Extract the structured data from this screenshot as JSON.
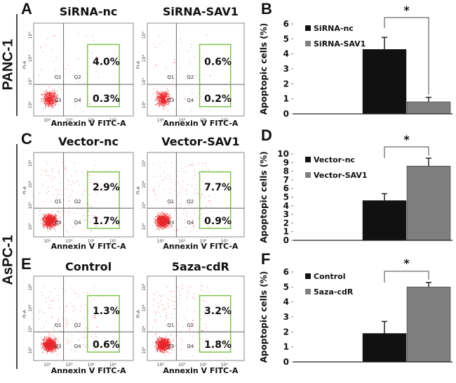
{
  "row_labels": [
    "PANC-1",
    "AsPC-1"
  ],
  "flow_panels": [
    {
      "letter": "A",
      "plots": [
        {
          "title": "SiRNA-nc",
          "q2": "4.0%",
          "q4": "0.3%"
        },
        {
          "title": "SiRNA-SAV1",
          "q2": "0.6%",
          "q4": "0.2%"
        }
      ]
    },
    {
      "letter": "C",
      "plots": [
        {
          "title": "Vector-nc",
          "q2": "2.9%",
          "q4": "1.7%"
        },
        {
          "title": "Vector-SAV1",
          "q2": "7.7%",
          "q4": "0.9%"
        }
      ]
    },
    {
      "letter": "E",
      "plots": [
        {
          "title": "Control",
          "q2": "1.3%",
          "q4": "0.6%"
        },
        {
          "title": "5aza-cdR",
          "q2": "3.2%",
          "q4": "1.8%"
        }
      ]
    }
  ],
  "flow_axes": {
    "xlabel": "Annexin V FITC-A",
    "ylabel": "PI-A",
    "quadrants": [
      "Q1",
      "Q2",
      "Q3",
      "Q4"
    ],
    "ticks": [
      "10²",
      "10³",
      "10⁴",
      "10⁵"
    ]
  },
  "colors": {
    "dots": "#e8262a",
    "gate": "#7dc44a",
    "bar1": "#111111",
    "bar2": "#7f7f7f"
  },
  "chart_data": [
    {
      "letter": "B",
      "type": "bar",
      "ylabel": "Apoptopic cells (%)",
      "ylim": [
        0,
        6
      ],
      "yticks": [
        "0",
        "1",
        "2",
        "3",
        "4",
        "5",
        "6"
      ],
      "significance": "*",
      "series": [
        {
          "name": "SiRNA-nc",
          "value": 4.3,
          "error": 0.8
        },
        {
          "name": "SiRNA-SAV1",
          "value": 0.8,
          "error": 0.3
        }
      ]
    },
    {
      "letter": "D",
      "type": "bar",
      "ylabel": "Apoptopic cells (%)",
      "ylim": [
        0,
        10
      ],
      "yticks": [
        "0",
        "1",
        "2",
        "3",
        "4",
        "5",
        "6",
        "7",
        "8",
        "9",
        "10"
      ],
      "significance": "*",
      "series": [
        {
          "name": "Vector-nc",
          "value": 4.6,
          "error": 0.8
        },
        {
          "name": "Vector-SAV1",
          "value": 8.6,
          "error": 0.9
        }
      ]
    },
    {
      "letter": "F",
      "type": "bar",
      "ylabel": "Apoptopic cells (%)",
      "ylim": [
        0,
        6
      ],
      "yticks": [
        "0",
        "1",
        "2",
        "3",
        "4",
        "5",
        "6"
      ],
      "significance": "*",
      "series": [
        {
          "name": "Control",
          "value": 1.9,
          "error": 0.8
        },
        {
          "name": "5aza-cdR",
          "value": 5.0,
          "error": 0.3
        }
      ]
    }
  ]
}
